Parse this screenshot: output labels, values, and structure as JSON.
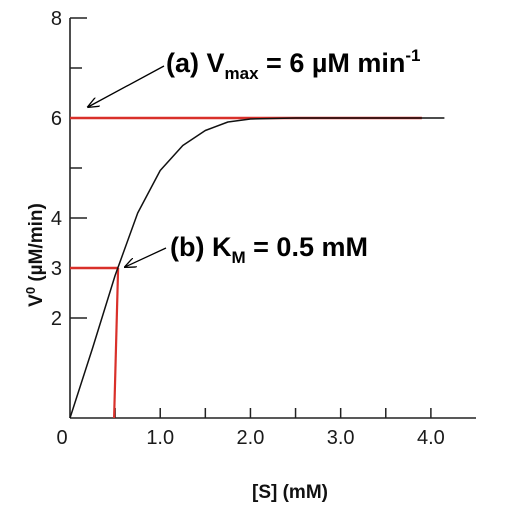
{
  "chart_data": {
    "type": "line",
    "xlabel": "[S]  (mM)",
    "ylabel_main": "V",
    "ylabel_sup": "0",
    "ylabel_rest": " (µM/min)",
    "x_ticks": [
      0,
      1.0,
      2.0,
      3.0,
      4.0
    ],
    "x_tick_labels": [
      "0",
      "1.0",
      "2.0",
      "3.0",
      "4.0"
    ],
    "x_minor_ticks": [
      0.5,
      1.5,
      2.5,
      3.5
    ],
    "y_ticks": [
      2,
      3,
      4,
      6,
      8
    ],
    "y_tick_labels": [
      "2",
      "3",
      "4",
      "6",
      "8"
    ],
    "y_minor_ticks": [
      5,
      7
    ],
    "xlim": [
      0,
      4.5
    ],
    "ylim": [
      0,
      8
    ],
    "curve": {
      "x": [
        0,
        0.25,
        0.5,
        0.75,
        1.0,
        1.25,
        1.5,
        1.75,
        2.0,
        2.5,
        3.0,
        3.5,
        4.0,
        4.15
      ],
      "y": [
        0,
        1.4,
        2.85,
        4.1,
        4.95,
        5.45,
        5.75,
        5.92,
        5.98,
        6.0,
        6.0,
        6.0,
        6.0,
        6.0
      ]
    },
    "vmax_line": {
      "value": 6,
      "x_end": 3.9,
      "color": "#d9302a"
    },
    "km_line": {
      "km": 0.5,
      "half_vmax": 3,
      "color": "#d9302a"
    },
    "annotations": {
      "a_prefix": "(a) V",
      "a_sub": "max",
      "a_mid": " = 6 µM min",
      "a_sup": "-1",
      "b_prefix": "(b) K",
      "b_sub": "M",
      "b_rest": " = 0.5 mM"
    }
  }
}
